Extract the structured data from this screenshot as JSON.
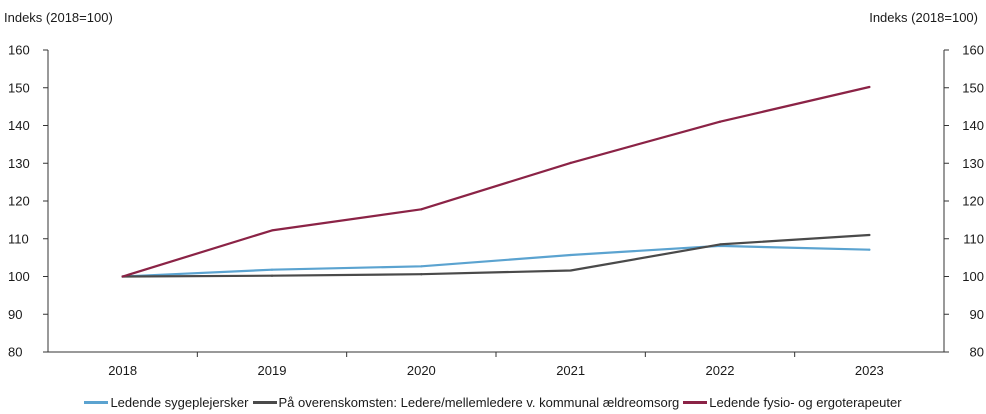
{
  "chart_data": {
    "type": "line",
    "title": "",
    "ylabel_left": "Indeks (2018=100)",
    "ylabel_right": "Indeks (2018=100)",
    "categories": [
      "2018",
      "2019",
      "2020",
      "2021",
      "2022",
      "2023"
    ],
    "ylim": [
      80,
      160
    ],
    "yticks": [
      "80",
      "90",
      "100",
      "110",
      "120",
      "130",
      "140",
      "150",
      "160"
    ],
    "grid": false,
    "legend_position": "bottom",
    "series": [
      {
        "name": "Ledende sygeplejersker",
        "color": "#5ba3d0",
        "values": [
          100,
          101.8,
          102.7,
          105.7,
          108.1,
          107.1
        ]
      },
      {
        "name": "På overenskomsten: Ledere/mellemledere v. kommunal ældreomsorg",
        "color": "#4a4a4a",
        "values": [
          100,
          100.2,
          100.6,
          101.6,
          108.5,
          111.0
        ]
      },
      {
        "name": "Ledende fysio- og ergoterapeuter",
        "color": "#8b2346",
        "values": [
          100,
          112.2,
          117.8,
          130.1,
          141.0,
          150.2
        ]
      }
    ]
  }
}
